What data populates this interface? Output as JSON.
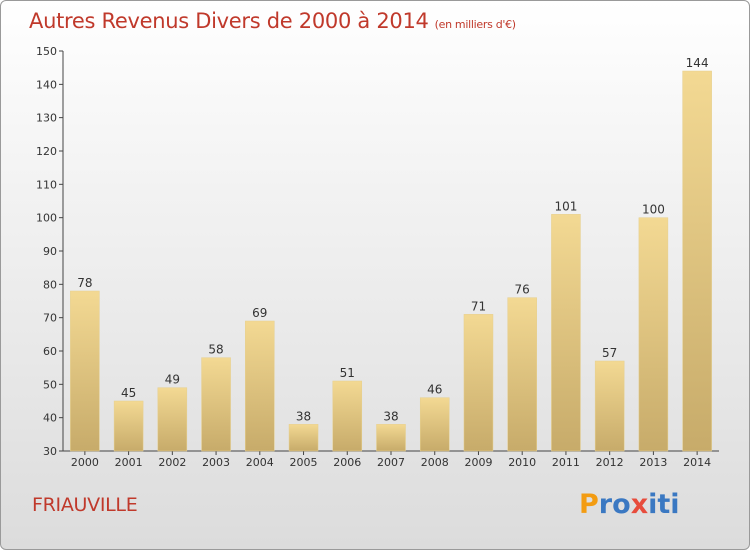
{
  "chart_data": {
    "type": "bar",
    "title": "Autres Revenus Divers de 2000 à 2014",
    "subtitle": "(en milliers d'€)",
    "categories": [
      "2000",
      "2001",
      "2002",
      "2003",
      "2004",
      "2005",
      "2006",
      "2007",
      "2008",
      "2009",
      "2010",
      "2011",
      "2012",
      "2013",
      "2014"
    ],
    "values": [
      78,
      45,
      49,
      58,
      69,
      38,
      51,
      38,
      46,
      71,
      76,
      101,
      57,
      100,
      144
    ],
    "ylim": [
      30,
      150
    ],
    "yticks": [
      30,
      40,
      50,
      60,
      70,
      80,
      90,
      100,
      110,
      120,
      130,
      140,
      150
    ],
    "grid": false,
    "legend": "none",
    "bar_color": "#e8cc84"
  },
  "footer": {
    "commune": "FRIAUVILLE",
    "logo_letters": [
      "P",
      "r",
      "o",
      "x",
      "i",
      "t",
      "i"
    ],
    "logo_colors": [
      "#f39c12",
      "#3a78c2",
      "#3a78c2",
      "#e74c3c",
      "#3a78c2",
      "#3a78c2",
      "#3a78c2"
    ]
  },
  "colors": {
    "title": "#c0392b",
    "axis": "#444444"
  }
}
